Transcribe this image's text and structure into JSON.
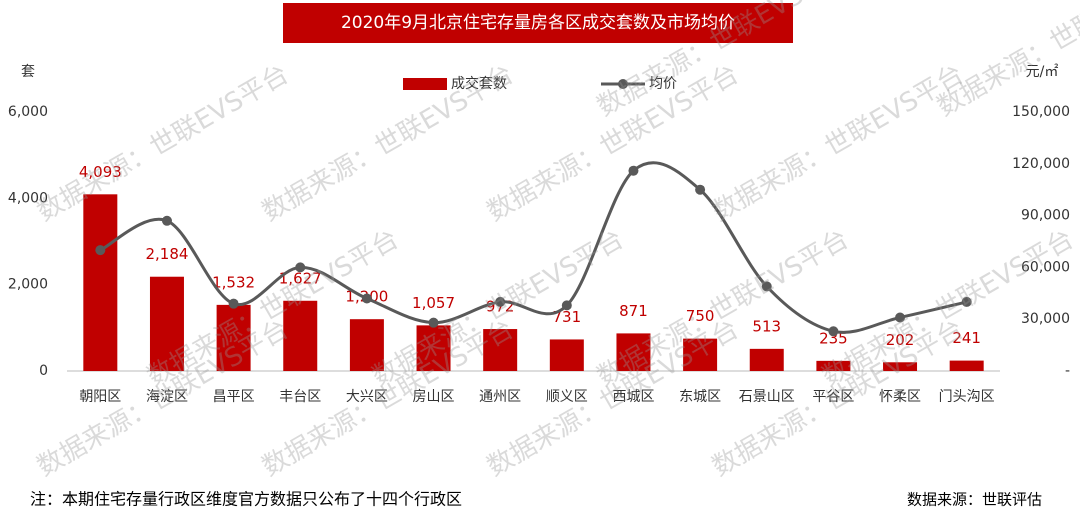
{
  "chart_data": {
    "type": "bar-line",
    "title": "2020年9月北京住宅存量房各区成交套数及市场均价",
    "y_label": "套",
    "y2_label": "元/㎡",
    "categories": [
      "朝阳区",
      "海淀区",
      "昌平区",
      "丰台区",
      "大兴区",
      "房山区",
      "通州区",
      "顺义区",
      "西城区",
      "东城区",
      "石景山区",
      "平谷区",
      "怀柔区",
      "门头沟区"
    ],
    "series": [
      {
        "name": "成交套数",
        "type": "bar",
        "color": "#c00000",
        "values": [
          4093,
          2184,
          1532,
          1627,
          1200,
          1057,
          972,
          731,
          871,
          750,
          513,
          235,
          202,
          241
        ],
        "value_labels": [
          "4,093",
          "2,184",
          "1,532",
          "1,627",
          "1,200",
          "1,057",
          "972",
          "731",
          "871",
          "750",
          "513",
          "235",
          "202",
          "241"
        ]
      },
      {
        "name": "均价",
        "type": "line",
        "axis": "y2",
        "color": "#595959",
        "values": [
          70000,
          87000,
          39000,
          60000,
          42000,
          28000,
          40000,
          38000,
          116000,
          105000,
          49000,
          23000,
          31000,
          40000
        ]
      }
    ],
    "ylim": [
      0,
      6000
    ],
    "yticks": [
      0,
      {
        "value": 2000,
        "label": "2,000"
      },
      {
        "value": 4000,
        "label": "4,000"
      },
      {
        "value": 6000,
        "label": "6,000"
      }
    ],
    "y2lim": [
      0,
      150000
    ],
    "y2ticks": [
      {
        "value": 0,
        "label": "-"
      },
      {
        "value": 30000,
        "label": "30,000"
      },
      {
        "value": 60000,
        "label": "60,000"
      },
      {
        "value": 90000,
        "label": "90,000"
      },
      {
        "value": 120000,
        "label": "120,000"
      },
      {
        "value": 150000,
        "label": "150,000"
      }
    ],
    "grid": false,
    "legend": "top",
    "watermark": "数据来源：世联EVS平台",
    "note": "注：本期住宅存量行政区维度官方数据只公布了十四个行政区",
    "source": "数据来源：世联评估"
  }
}
